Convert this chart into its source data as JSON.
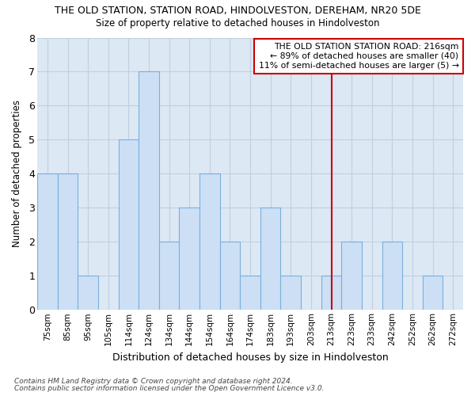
{
  "title": "THE OLD STATION, STATION ROAD, HINDOLVESTON, DEREHAM, NR20 5DE",
  "subtitle": "Size of property relative to detached houses in Hindolveston",
  "xlabel": "Distribution of detached houses by size in Hindolveston",
  "ylabel": "Number of detached properties",
  "categories": [
    "75sqm",
    "85sqm",
    "95sqm",
    "105sqm",
    "114sqm",
    "124sqm",
    "134sqm",
    "144sqm",
    "154sqm",
    "164sqm",
    "174sqm",
    "183sqm",
    "193sqm",
    "203sqm",
    "213sqm",
    "223sqm",
    "233sqm",
    "242sqm",
    "252sqm",
    "262sqm",
    "272sqm"
  ],
  "values": [
    4,
    4,
    1,
    0,
    5,
    7,
    2,
    3,
    4,
    2,
    1,
    3,
    1,
    0,
    1,
    2,
    0,
    2,
    0,
    1,
    0
  ],
  "bar_color": "#ccdff5",
  "bar_edge_color": "#7ab0db",
  "plot_bg_color": "#dde8f5",
  "grid_color": "#c0cfe0",
  "fig_bg_color": "#ffffff",
  "vline_x_index": 14,
  "vline_color": "#cc0000",
  "annotation_text": "THE OLD STATION STATION ROAD: 216sqm\n← 89% of detached houses are smaller (40)\n11% of semi-detached houses are larger (5) →",
  "annotation_box_color": "#ffffff",
  "annotation_box_edge": "#cc0000",
  "ylim": [
    0,
    8
  ],
  "footer1": "Contains HM Land Registry data © Crown copyright and database right 2024.",
  "footer2": "Contains public sector information licensed under the Open Government Licence v3.0."
}
